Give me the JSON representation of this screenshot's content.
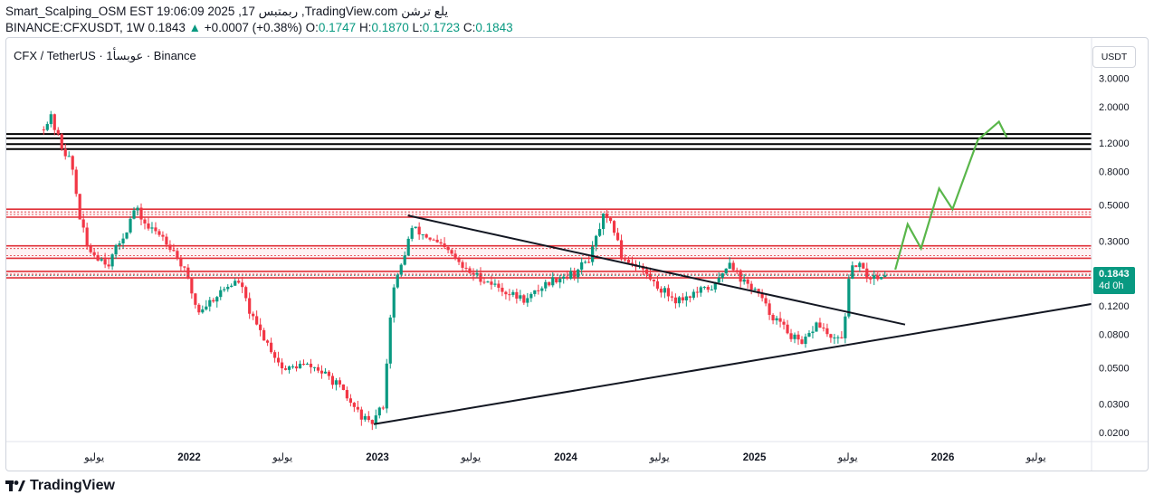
{
  "header": {
    "line1": "Smart_Scalping_OSM EST 19:06:09 2025 ,17 ربمتبس ,TradingView.com يلع ترشن",
    "symbol_tf": "BINANCE:CFXUSDT, 1W",
    "last": "0.1843",
    "change_arrow": "▲",
    "change": "+0.0007 (+0.38%)",
    "o_label": "O:",
    "o": "0.1747",
    "h_label": "H:",
    "h": "0.1870",
    "l_label": "L:",
    "l": "0.1723",
    "c_label": "C:",
    "c": "0.1843"
  },
  "chart_title": "CFX / TetherUS · 1عوبسأ · Binance",
  "currency_button": "USDT",
  "price_tag": {
    "price": "0.1843",
    "countdown": "4d 0h"
  },
  "footer": {
    "brand": "TradingView"
  },
  "colors": {
    "up": "#089981",
    "down": "#f23645",
    "zone": "#e03038",
    "trend": "#131722",
    "projection": "#59b64a"
  },
  "chart_data": {
    "type": "candlestick",
    "timeframe": "1W",
    "y_scale": "log",
    "y_ticks": [
      "3.0000",
      "2.0000",
      "1.2000",
      "0.8000",
      "0.5000",
      "0.3000",
      "0.1200",
      "0.0800",
      "0.0500",
      "0.0300",
      "0.0200"
    ],
    "y_tick_values": [
      3.0,
      2.0,
      1.2,
      0.8,
      0.5,
      0.3,
      0.12,
      0.08,
      0.05,
      0.03,
      0.02
    ],
    "x_ticks": [
      {
        "label": "يوليو",
        "date": "2021-07-01",
        "bold": false
      },
      {
        "label": "2022",
        "date": "2022-01-01",
        "bold": true
      },
      {
        "label": "يوليو",
        "date": "2022-07-01",
        "bold": false
      },
      {
        "label": "2023",
        "date": "2023-01-01",
        "bold": true
      },
      {
        "label": "يوليو",
        "date": "2023-07-01",
        "bold": false
      },
      {
        "label": "2024",
        "date": "2024-01-01",
        "bold": true
      },
      {
        "label": "يوليو",
        "date": "2024-07-01",
        "bold": false
      },
      {
        "label": "2025",
        "date": "2025-01-01",
        "bold": true
      },
      {
        "label": "يوليو",
        "date": "2025-07-01",
        "bold": false
      },
      {
        "label": "2026",
        "date": "2026-01-01",
        "bold": true
      },
      {
        "label": "يوليو",
        "date": "2026-07-01",
        "bold": false
      }
    ],
    "price_path": [
      [
        "2021-03-25",
        1.45
      ],
      [
        "2021-04-15",
        1.7
      ],
      [
        "2021-05-05",
        1.15
      ],
      [
        "2021-05-25",
        0.9
      ],
      [
        "2021-06-10",
        0.42
      ],
      [
        "2021-06-25",
        0.27
      ],
      [
        "2021-07-15",
        0.24
      ],
      [
        "2021-08-05",
        0.22
      ],
      [
        "2021-09-10",
        0.36
      ],
      [
        "2021-09-25",
        0.48
      ],
      [
        "2021-10-20",
        0.36
      ],
      [
        "2021-11-15",
        0.33
      ],
      [
        "2021-12-10",
        0.26
      ],
      [
        "2022-01-01",
        0.19
      ],
      [
        "2022-01-25",
        0.11
      ],
      [
        "2022-02-20",
        0.13
      ],
      [
        "2022-03-25",
        0.16
      ],
      [
        "2022-04-15",
        0.17
      ],
      [
        "2022-05-10",
        0.1
      ],
      [
        "2022-06-10",
        0.07
      ],
      [
        "2022-07-10",
        0.048
      ],
      [
        "2022-08-10",
        0.052
      ],
      [
        "2022-09-10",
        0.05
      ],
      [
        "2022-10-20",
        0.04
      ],
      [
        "2022-11-25",
        0.028
      ],
      [
        "2022-12-25",
        0.022
      ],
      [
        "2023-01-20",
        0.03
      ],
      [
        "2023-02-05",
        0.14
      ],
      [
        "2023-02-25",
        0.22
      ],
      [
        "2023-03-15",
        0.36
      ],
      [
        "2023-04-20",
        0.31
      ],
      [
        "2023-05-30",
        0.25
      ],
      [
        "2023-06-25",
        0.2
      ],
      [
        "2023-08-10",
        0.17
      ],
      [
        "2023-09-25",
        0.14
      ],
      [
        "2023-10-25",
        0.13
      ],
      [
        "2023-11-25",
        0.16
      ],
      [
        "2023-12-25",
        0.18
      ],
      [
        "2024-01-25",
        0.19
      ],
      [
        "2024-02-25",
        0.24
      ],
      [
        "2024-03-20",
        0.42
      ],
      [
        "2024-04-10",
        0.36
      ],
      [
        "2024-04-25",
        0.24
      ],
      [
        "2024-05-30",
        0.21
      ],
      [
        "2024-07-01",
        0.16
      ],
      [
        "2024-08-10",
        0.13
      ],
      [
        "2024-09-20",
        0.145
      ],
      [
        "2024-10-25",
        0.16
      ],
      [
        "2024-11-20",
        0.23
      ],
      [
        "2024-12-15",
        0.17
      ],
      [
        "2025-01-10",
        0.15
      ],
      [
        "2025-02-05",
        0.11
      ],
      [
        "2025-03-10",
        0.085
      ],
      [
        "2025-04-10",
        0.068
      ],
      [
        "2025-05-10",
        0.095
      ],
      [
        "2025-06-10",
        0.072
      ],
      [
        "2025-06-28",
        0.078
      ],
      [
        "2025-07-12",
        0.19
      ],
      [
        "2025-07-25",
        0.22
      ],
      [
        "2025-08-15",
        0.18
      ],
      [
        "2025-09-14",
        0.1843
      ]
    ],
    "last_close": 0.1843,
    "horizontal_levels": [
      {
        "kind": "black",
        "prices": [
          1.36,
          1.28,
          1.18,
          1.1
        ]
      },
      {
        "kind": "zone",
        "top": 0.47,
        "bottom": 0.42
      },
      {
        "kind": "zone",
        "top": 0.28,
        "bottom": 0.235
      },
      {
        "kind": "zone",
        "top": 0.195,
        "bottom": 0.178
      }
    ],
    "trendlines": [
      {
        "name": "descending",
        "from": [
          "2023-03-01",
          0.43
        ],
        "to": [
          "2025-10-20",
          0.092
        ]
      },
      {
        "name": "ascending",
        "from": [
          "2022-12-25",
          0.0225
        ],
        "to": [
          "2026-12-31",
          0.135
        ]
      }
    ],
    "projection": [
      [
        "2025-10-01",
        0.2
      ],
      [
        "2025-10-25",
        0.38
      ],
      [
        "2025-11-20",
        0.27
      ],
      [
        "2025-12-25",
        0.63
      ],
      [
        "2026-01-20",
        0.47
      ],
      [
        "2026-03-10",
        1.25
      ],
      [
        "2026-04-20",
        1.62
      ],
      [
        "2026-05-05",
        1.3
      ]
    ]
  }
}
